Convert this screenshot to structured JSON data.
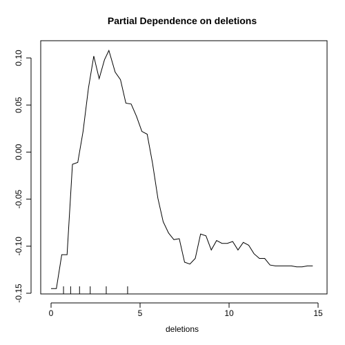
{
  "chart_data": {
    "type": "line",
    "title": "Partial Dependence on deletions",
    "xlabel": "deletions",
    "ylabel": "",
    "xlim": [
      0,
      15
    ],
    "ylim": [
      -0.15,
      0.11
    ],
    "xticks": [
      0,
      5,
      10,
      15
    ],
    "xtick_labels": [
      "0",
      "5",
      "10",
      "15"
    ],
    "yticks": [
      -0.15,
      -0.1,
      -0.05,
      0.0,
      0.05,
      0.1
    ],
    "ytick_labels": [
      "-0.15",
      "-0.10",
      "-0.05",
      "0.00",
      "0.05",
      "0.10"
    ],
    "grid": false,
    "series": [
      {
        "x": [
          0.0,
          0.3,
          0.6,
          0.9,
          1.2,
          1.5,
          1.8,
          2.1,
          2.4,
          2.7,
          3.0,
          3.25,
          3.6,
          3.9,
          4.2,
          4.5,
          4.8,
          5.1,
          5.4,
          5.7,
          6.0,
          6.3,
          6.6,
          6.9,
          7.2,
          7.5,
          7.8,
          8.1,
          8.4,
          8.7,
          9.0,
          9.3,
          9.6,
          9.9,
          10.2,
          10.5,
          10.8,
          11.1,
          11.4,
          11.7,
          12.0,
          12.3,
          12.6,
          12.9,
          13.2,
          13.5,
          13.8,
          14.1,
          14.4,
          14.7
        ],
        "y": [
          -0.145,
          -0.145,
          -0.109,
          -0.109,
          -0.013,
          -0.011,
          0.022,
          0.068,
          0.102,
          0.078,
          0.098,
          0.108,
          0.085,
          0.077,
          0.052,
          0.051,
          0.038,
          0.022,
          0.019,
          -0.012,
          -0.049,
          -0.074,
          -0.086,
          -0.093,
          -0.092,
          -0.117,
          -0.119,
          -0.113,
          -0.087,
          -0.089,
          -0.104,
          -0.094,
          -0.097,
          -0.097,
          -0.095,
          -0.104,
          -0.096,
          -0.099,
          -0.108,
          -0.113,
          -0.113,
          -0.12,
          -0.121,
          -0.121,
          -0.121,
          -0.121,
          -0.122,
          -0.122,
          -0.121,
          -0.121
        ]
      }
    ],
    "rug": [
      0.7,
      1.1,
      1.6,
      2.2,
      3.1,
      4.3
    ]
  }
}
